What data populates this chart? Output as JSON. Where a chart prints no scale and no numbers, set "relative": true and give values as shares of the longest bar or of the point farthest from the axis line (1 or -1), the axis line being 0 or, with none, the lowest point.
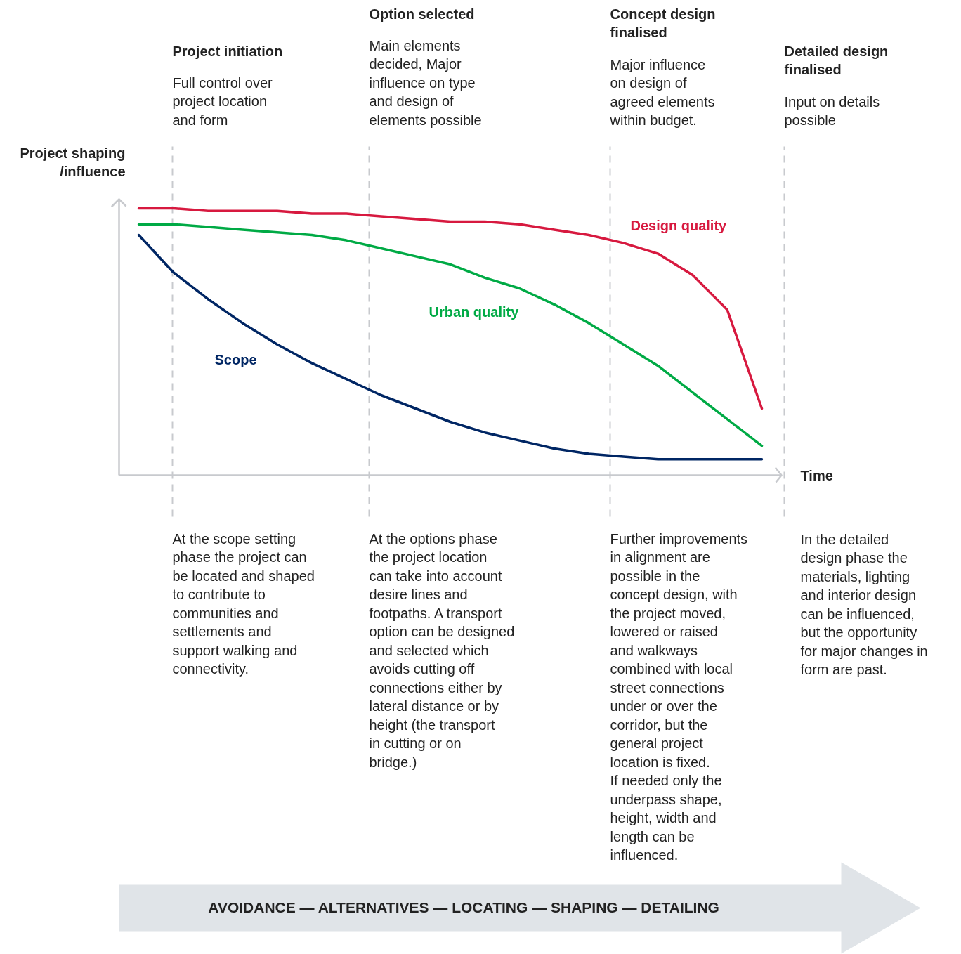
{
  "chart_data": {
    "type": "line",
    "relative": true,
    "xlabel": "Time",
    "ylabel": "Project shaping /influence",
    "line_style": "solid",
    "categories": [
      null,
      null,
      null,
      null,
      null,
      null,
      null,
      null,
      null,
      null,
      null,
      null,
      null,
      null,
      null,
      null,
      null,
      null,
      null
    ],
    "series": [
      {
        "name": "Design quality",
        "color": "#d7193f",
        "values": [
          1.0,
          1.0,
          0.99,
          0.99,
          0.99,
          0.98,
          0.98,
          0.97,
          0.96,
          0.95,
          0.95,
          0.94,
          0.92,
          0.9,
          0.87,
          0.83,
          0.75,
          0.62,
          0.25
        ]
      },
      {
        "name": "Urban quality",
        "color": "#00aa45",
        "values": [
          0.94,
          0.94,
          0.93,
          0.92,
          0.91,
          0.9,
          0.88,
          0.85,
          0.82,
          0.79,
          0.74,
          0.7,
          0.64,
          0.57,
          0.49,
          0.41,
          0.31,
          0.21,
          0.11
        ]
      },
      {
        "name": "Scope",
        "color": "#002664",
        "values": [
          0.9,
          0.76,
          0.66,
          0.57,
          0.49,
          0.42,
          0.36,
          0.3,
          0.25,
          0.2,
          0.16,
          0.13,
          0.1,
          0.08,
          0.07,
          0.06,
          0.06,
          0.06,
          0.06
        ]
      }
    ],
    "ref_lines": [
      {
        "axis": "x",
        "label": "Project initiation",
        "line_style": "dashed",
        "color": "#c8cace"
      },
      {
        "axis": "x",
        "label": "Option selected",
        "line_style": "dashed",
        "color": "#c8cace"
      },
      {
        "axis": "x",
        "label": "Concept design finalised",
        "line_style": "dashed",
        "color": "#c8cace"
      },
      {
        "axis": "x",
        "label": "Detailed design finalised",
        "line_style": "dashed",
        "color": "#c8cace"
      }
    ],
    "annotations": [
      "Full control over project location and form",
      "Main elements decided, Major influence on type and design of elements possible",
      "Major influence on design of agreed elements within budget.",
      "Input on details possible",
      "At the scope setting phase the project can be located and shaped to contribute to communities and settlements and support walking and connectivity.",
      "At the options phase the project location can take into account desire lines and footpaths. A transport option can be designed and selected which avoids cutting off connections either by lateral distance or by height (the transport in cutting or on bridge.)",
      "Further improvements in alignment are possible in the concept design, with the project moved, lowered or raised and walkways combined with local street connections under or over the corridor, but the general project location is fixed. If needed only the underpass shape, height, width and length can be influenced.",
      "In the detailed design phase the materials, lighting and interior design can be influenced, but the opportunity for major changes in form are past.",
      "AVOIDANCE — ALTERNATIVES — LOCATING — SHAPING — DETAILING"
    ]
  }
}
